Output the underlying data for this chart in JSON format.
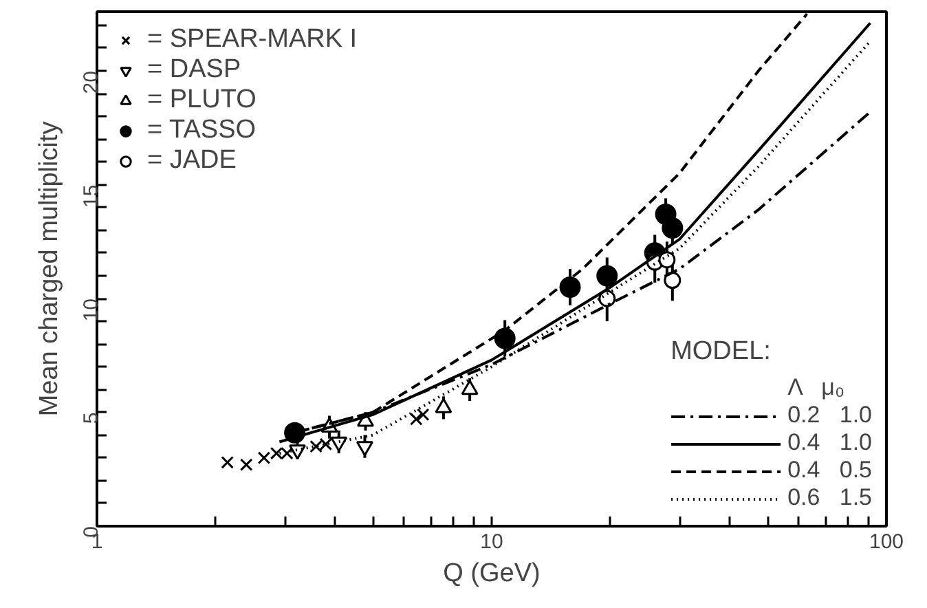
{
  "chart_data": {
    "type": "scatter",
    "xlabel": "Q (GeV)",
    "ylabel": "Mean charged multiplicity",
    "log": "x",
    "xlim": [
      1,
      100
    ],
    "ylim": [
      0,
      22.6
    ],
    "xticks": [
      1,
      {
        "value": 2,
        "label": null
      },
      {
        "value": 3,
        "label": null
      },
      {
        "value": 4,
        "label": null
      },
      {
        "value": 5,
        "label": null
      },
      {
        "value": 6,
        "label": null
      },
      {
        "value": 7,
        "label": null
      },
      {
        "value": 8,
        "label": null
      },
      {
        "value": 9,
        "label": null
      },
      10,
      {
        "value": 20,
        "label": null
      },
      {
        "value": 30,
        "label": null
      },
      {
        "value": 40,
        "label": null
      },
      {
        "value": 50,
        "label": null
      },
      {
        "value": 60,
        "label": null
      },
      {
        "value": 70,
        "label": null
      },
      {
        "value": 80,
        "label": null
      },
      {
        "value": 90,
        "label": null
      },
      100
    ],
    "yticks": [
      0,
      {
        "value": 1,
        "label": null
      },
      {
        "value": 2,
        "label": null
      },
      {
        "value": 3,
        "label": null
      },
      {
        "value": 4,
        "label": null
      },
      5,
      {
        "value": 6,
        "label": null
      },
      {
        "value": 7,
        "label": null
      },
      {
        "value": 8,
        "label": null
      },
      {
        "value": 9,
        "label": null
      },
      10,
      {
        "value": 11,
        "label": null
      },
      {
        "value": 12,
        "label": null
      },
      {
        "value": 13,
        "label": null
      },
      {
        "value": 14,
        "label": null
      },
      15,
      {
        "value": 16,
        "label": null
      },
      {
        "value": 17,
        "label": null
      },
      {
        "value": 18,
        "label": null
      },
      {
        "value": 19,
        "label": null
      },
      20,
      {
        "value": 21,
        "label": null
      },
      {
        "value": 22,
        "label": null
      }
    ],
    "grid": false,
    "legend": "top left",
    "legend_title": "MODEL:",
    "annotations": [
      "Λ   μ₀"
    ],
    "series": [
      {
        "name": "= SPEAR-MARK I",
        "marker": "cross",
        "color": "#000000",
        "x": [
          2.14,
          2.39,
          2.65,
          2.85,
          3.03,
          3.59,
          3.8,
          6.44,
          6.7
        ],
        "values": [
          2.8,
          2.7,
          3.0,
          3.2,
          3.2,
          3.5,
          3.6,
          4.7,
          4.9
        ]
      },
      {
        "name": "= DASP",
        "marker": "triangle_down",
        "color": "#000000",
        "x": [
          3.22,
          4.1,
          4.77
        ],
        "values": [
          3.35,
          3.7,
          3.5
        ],
        "errors": [
          0.4,
          0.5,
          0.5
        ]
      },
      {
        "name": "= PLUTO",
        "marker": "triangle",
        "color": "#000000",
        "x": [
          3.88,
          4.79,
          7.55,
          8.8
        ],
        "values": [
          4.35,
          4.6,
          5.2,
          6.0
        ],
        "errors": [
          0.5,
          0.4,
          0.5,
          0.5
        ]
      },
      {
        "name": "= TASSO",
        "marker": "circle",
        "color": "#000000",
        "x": [
          3.17,
          10.8,
          15.8,
          19.6,
          25.9,
          27.6,
          28.7
        ],
        "values": [
          4.1,
          8.25,
          10.5,
          11.0,
          12.0,
          13.7,
          13.1
        ],
        "errors": [
          0.3,
          0.8,
          0.8,
          0.8,
          0.8,
          0.7,
          0.7
        ]
      },
      {
        "name": "= JADE",
        "marker": "circle_open",
        "color": "#000000",
        "x": [
          19.6,
          25.9,
          27.8,
          28.7
        ],
        "values": [
          10.0,
          11.6,
          11.7,
          10.8
        ],
        "errors": [
          1.0,
          0.9,
          0.8,
          0.9
        ]
      },
      {
        "name": "0.2   1.0",
        "type": "line",
        "line_style": "dashdot",
        "color": "#000000",
        "x": [
          3,
          5,
          10,
          19.6,
          29.9,
          47.4,
          91
        ],
        "values": [
          4.0,
          5.0,
          7.1,
          9.7,
          11.3,
          13.9,
          18.2
        ]
      },
      {
        "name": "0.4   1.0",
        "type": "line",
        "line_style": "solid",
        "color": "#000000",
        "x": [
          2.9,
          5,
          10,
          19.6,
          29.9,
          47.4,
          91
        ],
        "values": [
          3.7,
          4.9,
          7.3,
          10.4,
          12.6,
          16.5,
          22.1
        ]
      },
      {
        "name": "0.4   0.5",
        "type": "line",
        "line_style": "dashed",
        "color": "#000000",
        "x": [
          3,
          5,
          10.8,
          17,
          29.9,
          47.4,
          62.9
        ],
        "values": [
          4.0,
          5.0,
          8.6,
          11.3,
          15.5,
          20.0,
          22.5
        ]
      },
      {
        "name": "0.6   1.5",
        "type": "line",
        "line_style": "dotted",
        "color": "#000000",
        "x": [
          2.9,
          5,
          10,
          19.6,
          29.9,
          47.4,
          91
        ],
        "values": [
          3.2,
          4.0,
          7.0,
          10.2,
          12.2,
          15.8,
          21.3
        ]
      }
    ]
  }
}
